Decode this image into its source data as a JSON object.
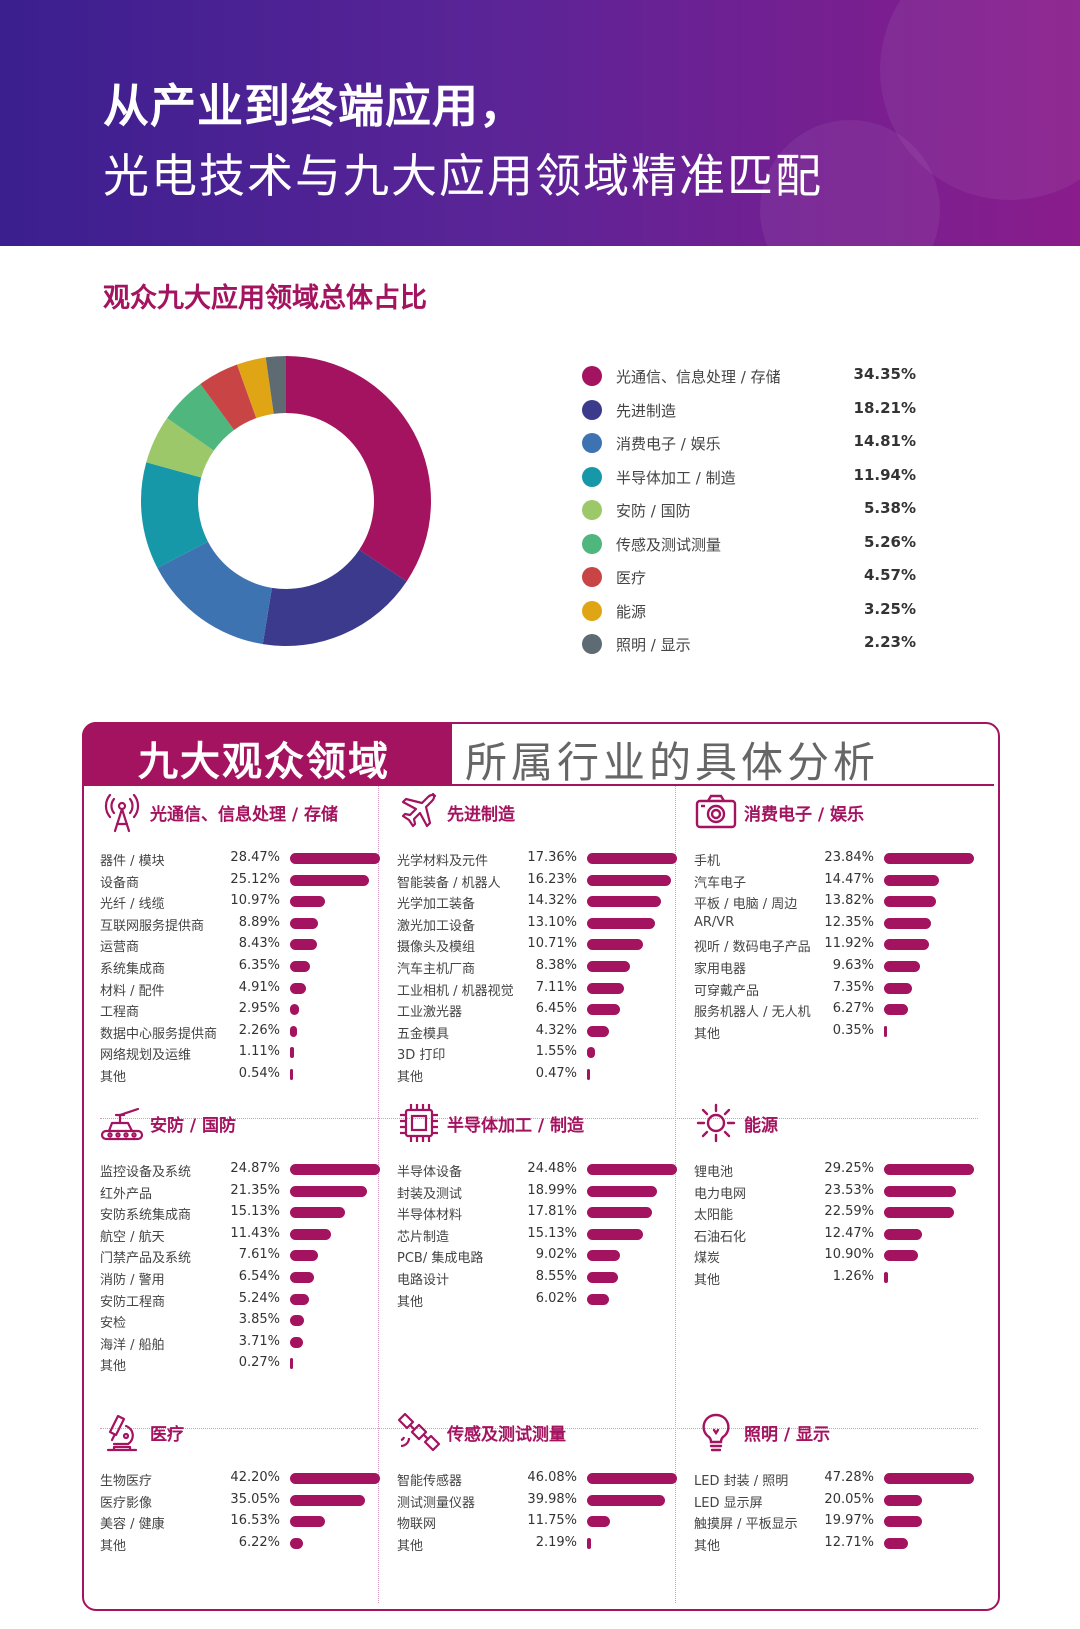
{
  "header": {
    "title_line1": "从产业到终端应用，",
    "title_line2": "光电技术与九大应用领域精准匹配"
  },
  "overview": {
    "title": "观众九大应用领域总体占比"
  },
  "panel": {
    "title_main": "九大观众领域",
    "title_sub": "所属行业的具体分析"
  },
  "chart_data": [
    {
      "type": "pie",
      "donut": true,
      "title": "观众九大应用领域总体占比",
      "legend_position": "right",
      "slices": [
        {
          "label": "光通信、信息处理 / 存储",
          "value": 34.35,
          "display": "34.35%",
          "color": "#a4135f"
        },
        {
          "label": "先进制造",
          "value": 18.21,
          "display": "18.21%",
          "color": "#3b3a8c"
        },
        {
          "label": "消费电子 / 娱乐",
          "value": 14.81,
          "display": "14.81%",
          "color": "#3d73b0"
        },
        {
          "label": "半导体加工 / 制造",
          "value": 11.94,
          "display": "11.94%",
          "color": "#1798a8"
        },
        {
          "label": "安防 / 国防",
          "value": 5.38,
          "display": "5.38%",
          "color": "#9dc86a"
        },
        {
          "label": "传感及测试测量",
          "value": 5.26,
          "display": "5.26%",
          "color": "#4fb77d"
        },
        {
          "label": "医疗",
          "value": 4.57,
          "display": "4.57%",
          "color": "#c94545"
        },
        {
          "label": "能源",
          "value": 3.25,
          "display": "3.25%",
          "color": "#e0a515"
        },
        {
          "label": "照明 / 显示",
          "value": 2.23,
          "display": "2.23%",
          "color": "#5f6b73"
        }
      ]
    },
    {
      "type": "bar",
      "orientation": "horizontal",
      "title": "光通信、信息处理 / 存储",
      "icon": "antenna-tower-icon",
      "bars": [
        {
          "label": "器件 / 模块",
          "value": 28.47,
          "display": "28.47%"
        },
        {
          "label": "设备商",
          "value": 25.12,
          "display": "25.12%"
        },
        {
          "label": "光纤 / 线缆",
          "value": 10.97,
          "display": "10.97%"
        },
        {
          "label": "互联网服务提供商",
          "value": 8.89,
          "display": "8.89%"
        },
        {
          "label": "运营商",
          "value": 8.43,
          "display": "8.43%"
        },
        {
          "label": "系统集成商",
          "value": 6.35,
          "display": "6.35%"
        },
        {
          "label": "材料 / 配件",
          "value": 4.91,
          "display": "4.91%"
        },
        {
          "label": "工程商",
          "value": 2.95,
          "display": "2.95%"
        },
        {
          "label": "数据中心服务提供商",
          "value": 2.26,
          "display": "2.26%"
        },
        {
          "label": "网络规划及运维",
          "value": 1.11,
          "display": "1.11%"
        },
        {
          "label": "其他",
          "value": 0.54,
          "display": "0.54%"
        }
      ]
    },
    {
      "type": "bar",
      "orientation": "horizontal",
      "title": "先进制造",
      "icon": "airplane-icon",
      "bars": [
        {
          "label": "光学材料及元件",
          "value": 17.36,
          "display": "17.36%"
        },
        {
          "label": "智能装备 / 机器人",
          "value": 16.23,
          "display": "16.23%"
        },
        {
          "label": "光学加工装备",
          "value": 14.32,
          "display": "14.32%"
        },
        {
          "label": "激光加工设备",
          "value": 13.1,
          "display": "13.10%"
        },
        {
          "label": "摄像头及模组",
          "value": 10.71,
          "display": "10.71%"
        },
        {
          "label": "汽车主机厂商",
          "value": 8.38,
          "display": "8.38%"
        },
        {
          "label": "工业相机 / 机器视觉",
          "value": 7.11,
          "display": "7.11%"
        },
        {
          "label": "工业激光器",
          "value": 6.45,
          "display": "6.45%"
        },
        {
          "label": "五金模具",
          "value": 4.32,
          "display": "4.32%"
        },
        {
          "label": "3D 打印",
          "value": 1.55,
          "display": "1.55%"
        },
        {
          "label": "其他",
          "value": 0.47,
          "display": "0.47%"
        }
      ]
    },
    {
      "type": "bar",
      "orientation": "horizontal",
      "title": "消费电子 / 娱乐",
      "icon": "camera-icon",
      "bars": [
        {
          "label": "手机",
          "value": 23.84,
          "display": "23.84%"
        },
        {
          "label": "汽车电子",
          "value": 14.47,
          "display": "14.47%"
        },
        {
          "label": "平板 / 电脑 / 周边",
          "value": 13.82,
          "display": "13.82%"
        },
        {
          "label": "AR/VR",
          "value": 12.35,
          "display": "12.35%"
        },
        {
          "label": "视听 / 数码电子产品",
          "value": 11.92,
          "display": "11.92%"
        },
        {
          "label": "家用电器",
          "value": 9.63,
          "display": "9.63%"
        },
        {
          "label": "可穿戴产品",
          "value": 7.35,
          "display": "7.35%"
        },
        {
          "label": "服务机器人 / 无人机",
          "value": 6.27,
          "display": "6.27%"
        },
        {
          "label": "其他",
          "value": 0.35,
          "display": "0.35%"
        }
      ]
    },
    {
      "type": "bar",
      "orientation": "horizontal",
      "title": "安防 / 国防",
      "icon": "tank-icon",
      "bars": [
        {
          "label": "监控设备及系统",
          "value": 24.87,
          "display": "24.87%"
        },
        {
          "label": "红外产品",
          "value": 21.35,
          "display": "21.35%"
        },
        {
          "label": "安防系统集成商",
          "value": 15.13,
          "display": "15.13%"
        },
        {
          "label": "航空 / 航天",
          "value": 11.43,
          "display": "11.43%"
        },
        {
          "label": "门禁产品及系统",
          "value": 7.61,
          "display": "7.61%"
        },
        {
          "label": "消防 / 警用",
          "value": 6.54,
          "display": "6.54%"
        },
        {
          "label": "安防工程商",
          "value": 5.24,
          "display": "5.24%"
        },
        {
          "label": "安检",
          "value": 3.85,
          "display": "3.85%"
        },
        {
          "label": "海洋 / 船舶",
          "value": 3.71,
          "display": "3.71%"
        },
        {
          "label": "其他",
          "value": 0.27,
          "display": "0.27%"
        }
      ]
    },
    {
      "type": "bar",
      "orientation": "horizontal",
      "title": "半导体加工 / 制造",
      "icon": "chip-icon",
      "bars": [
        {
          "label": "半导体设备",
          "value": 24.48,
          "display": "24.48%"
        },
        {
          "label": "封装及测试",
          "value": 18.99,
          "display": "18.99%"
        },
        {
          "label": "半导体材料",
          "value": 17.81,
          "display": "17.81%"
        },
        {
          "label": "芯片制造",
          "value": 15.13,
          "display": "15.13%"
        },
        {
          "label": "PCB/ 集成电路",
          "value": 9.02,
          "display": "9.02%"
        },
        {
          "label": "电路设计",
          "value": 8.55,
          "display": "8.55%"
        },
        {
          "label": "其他",
          "value": 6.02,
          "display": "6.02%"
        }
      ]
    },
    {
      "type": "bar",
      "orientation": "horizontal",
      "title": "能源",
      "icon": "sun-icon",
      "bars": [
        {
          "label": "锂电池",
          "value": 29.25,
          "display": "29.25%"
        },
        {
          "label": "电力电网",
          "value": 23.53,
          "display": "23.53%"
        },
        {
          "label": "太阳能",
          "value": 22.59,
          "display": "22.59%"
        },
        {
          "label": "石油石化",
          "value": 12.47,
          "display": "12.47%"
        },
        {
          "label": "煤炭",
          "value": 10.9,
          "display": "10.90%"
        },
        {
          "label": "其他",
          "value": 1.26,
          "display": "1.26%"
        }
      ]
    },
    {
      "type": "bar",
      "orientation": "horizontal",
      "title": "医疗",
      "icon": "microscope-icon",
      "bars": [
        {
          "label": "生物医疗",
          "value": 42.2,
          "display": "42.20%"
        },
        {
          "label": "医疗影像",
          "value": 35.05,
          "display": "35.05%"
        },
        {
          "label": "美容 / 健康",
          "value": 16.53,
          "display": "16.53%"
        },
        {
          "label": "其他",
          "value": 6.22,
          "display": "6.22%"
        }
      ]
    },
    {
      "type": "bar",
      "orientation": "horizontal",
      "title": "传感及测试测量",
      "icon": "satellite-icon",
      "bars": [
        {
          "label": "智能传感器",
          "value": 46.08,
          "display": "46.08%"
        },
        {
          "label": "测试测量仪器",
          "value": 39.98,
          "display": "39.98%"
        },
        {
          "label": "物联网",
          "value": 11.75,
          "display": "11.75%"
        },
        {
          "label": "其他",
          "value": 2.19,
          "display": "2.19%"
        }
      ]
    },
    {
      "type": "bar",
      "orientation": "horizontal",
      "title": "照明 / 显示",
      "icon": "lightbulb-icon",
      "bars": [
        {
          "label": "LED 封装 / 照明",
          "value": 47.28,
          "display": "47.28%"
        },
        {
          "label": "LED 显示屏",
          "value": 20.05,
          "display": "20.05%"
        },
        {
          "label": "触摸屏 / 平板显示",
          "value": 19.97,
          "display": "19.97%"
        },
        {
          "label": "其他",
          "value": 12.71,
          "display": "12.71%"
        }
      ]
    }
  ]
}
